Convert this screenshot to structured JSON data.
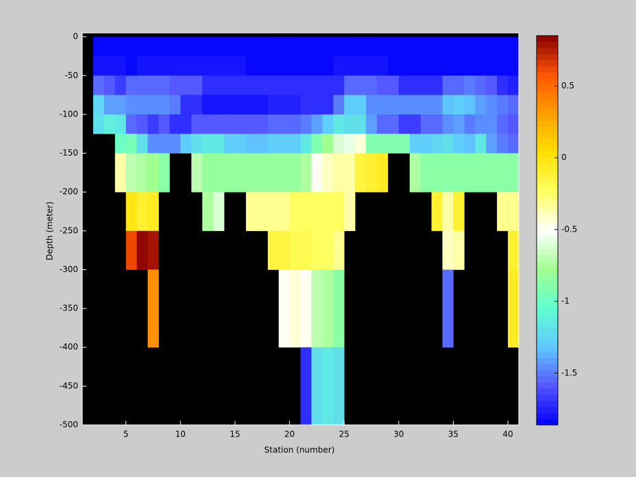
{
  "chart_data": {
    "type": "heatmap",
    "xlabel": "Station (number)",
    "ylabel": "Depth (meter)",
    "x_edges": [
      1,
      2,
      3,
      4,
      5,
      6,
      7,
      8,
      9,
      10,
      11,
      12,
      13,
      14,
      15,
      16,
      17,
      18,
      19,
      20,
      21,
      22,
      23,
      24,
      25,
      26,
      27,
      28,
      29,
      30,
      31,
      32,
      33,
      34,
      35,
      36,
      37,
      38,
      39,
      40,
      41
    ],
    "y_edges": [
      0,
      -25,
      -50,
      -75,
      -100,
      -125,
      -150,
      -200,
      -250,
      -300,
      -400,
      -500
    ],
    "values": [
      [
        null,
        -1.84,
        -1.84,
        -1.84,
        -1.84,
        -1.84,
        -1.84,
        -1.84,
        -1.84,
        -1.84,
        -1.84,
        -1.84,
        -1.84,
        -1.84,
        -1.84,
        -1.84,
        -1.84,
        -1.84,
        -1.84,
        -1.84,
        -1.84,
        -1.84,
        -1.84,
        -1.84,
        -1.84,
        -1.84,
        -1.84,
        -1.84,
        -1.84,
        -1.84,
        -1.84,
        -1.84,
        -1.84,
        -1.84,
        -1.84,
        -1.84,
        -1.84,
        -1.84,
        -1.84,
        -1.84
      ],
      [
        null,
        -1.8,
        -1.8,
        -1.8,
        -1.84,
        -1.78,
        -1.78,
        -1.78,
        -1.78,
        -1.78,
        -1.78,
        -1.78,
        -1.78,
        -1.78,
        -1.78,
        -1.85,
        -1.85,
        -1.85,
        -1.85,
        -1.85,
        -1.85,
        -1.85,
        -1.85,
        -1.8,
        -1.8,
        -1.8,
        -1.8,
        -1.8,
        -1.84,
        -1.84,
        -1.84,
        -1.84,
        -1.84,
        -1.84,
        -1.84,
        -1.84,
        -1.84,
        -1.84,
        -1.84,
        -1.84
      ],
      [
        null,
        -1.55,
        -1.6,
        -1.65,
        -1.55,
        -1.55,
        -1.55,
        -1.55,
        -1.6,
        -1.6,
        -1.6,
        -1.72,
        -1.72,
        -1.72,
        -1.72,
        -1.72,
        -1.72,
        -1.72,
        -1.72,
        -1.72,
        -1.72,
        -1.72,
        -1.72,
        -1.72,
        -1.55,
        -1.55,
        -1.55,
        -1.6,
        -1.6,
        -1.7,
        -1.7,
        -1.7,
        -1.7,
        -1.55,
        -1.55,
        -1.5,
        -1.55,
        -1.6,
        -1.7,
        -1.75
      ],
      [
        null,
        -1.25,
        -1.4,
        -1.4,
        -1.45,
        -1.45,
        -1.45,
        -1.45,
        -1.5,
        -1.7,
        -1.7,
        -1.78,
        -1.78,
        -1.78,
        -1.78,
        -1.78,
        -1.78,
        -1.75,
        -1.75,
        -1.75,
        -1.7,
        -1.7,
        -1.7,
        -1.5,
        -1.3,
        -1.3,
        -1.45,
        -1.45,
        -1.45,
        -1.45,
        -1.45,
        -1.45,
        -1.45,
        -1.35,
        -1.3,
        -1.35,
        -1.4,
        -1.45,
        -1.5,
        -1.55
      ],
      [
        null,
        -1.2,
        -1.1,
        -1.15,
        -1.55,
        -1.6,
        -1.65,
        -1.6,
        -1.7,
        -1.7,
        -1.6,
        -1.6,
        -1.6,
        -1.6,
        -1.6,
        -1.6,
        -1.6,
        -1.55,
        -1.55,
        -1.55,
        -1.5,
        -1.4,
        -1.3,
        -1.15,
        -1.2,
        -1.2,
        -1.4,
        -1.55,
        -1.55,
        -1.65,
        -1.65,
        -1.55,
        -1.55,
        -1.45,
        -1.4,
        -1.5,
        -1.45,
        -1.45,
        -1.55,
        -1.6
      ],
      [
        null,
        null,
        null,
        -1.0,
        -0.95,
        -1.2,
        -1.45,
        -1.45,
        -1.45,
        -1.3,
        -1.2,
        -1.15,
        -1.15,
        -1.3,
        -1.3,
        -1.35,
        -1.35,
        -1.3,
        -1.3,
        -1.3,
        -1.15,
        -0.9,
        -0.8,
        -0.6,
        -0.55,
        -0.45,
        -0.9,
        -0.9,
        -0.9,
        -0.9,
        -1.3,
        -1.3,
        -1.25,
        -1.2,
        -1.3,
        -1.35,
        -1.15,
        -1.4,
        -1.5,
        -1.55
      ],
      [
        null,
        null,
        null,
        -0.35,
        -0.7,
        -0.75,
        -0.8,
        -0.85,
        null,
        null,
        -0.7,
        -0.82,
        -0.82,
        -0.82,
        -0.82,
        -0.82,
        -0.82,
        -0.82,
        -0.82,
        -0.82,
        -0.75,
        -0.5,
        -0.4,
        -0.35,
        -0.35,
        -0.15,
        -0.1,
        -0.05,
        null,
        null,
        -0.75,
        -0.85,
        -0.85,
        -0.85,
        -0.85,
        -0.85,
        -0.85,
        -0.85,
        -0.85,
        -0.85
      ],
      [
        null,
        null,
        null,
        null,
        0.0,
        -0.1,
        -0.05,
        null,
        null,
        null,
        null,
        -0.75,
        -0.6,
        null,
        null,
        -0.3,
        -0.3,
        -0.3,
        -0.3,
        -0.25,
        -0.25,
        -0.25,
        -0.25,
        -0.25,
        -0.35,
        null,
        null,
        null,
        null,
        null,
        null,
        null,
        -0.1,
        -0.35,
        -0.1,
        null,
        null,
        null,
        -0.3,
        -0.3
      ],
      [
        null,
        null,
        null,
        null,
        0.6,
        0.82,
        0.78,
        null,
        null,
        null,
        null,
        null,
        null,
        null,
        null,
        null,
        null,
        -0.15,
        -0.15,
        -0.2,
        -0.2,
        -0.25,
        -0.25,
        -0.3,
        null,
        null,
        null,
        null,
        null,
        null,
        null,
        null,
        null,
        -0.4,
        -0.35,
        null,
        null,
        null,
        null,
        -0.1
      ],
      [
        null,
        null,
        null,
        null,
        null,
        null,
        0.35,
        null,
        null,
        null,
        null,
        null,
        null,
        null,
        null,
        null,
        null,
        null,
        -0.5,
        -0.45,
        -0.5,
        -0.7,
        -0.75,
        -0.85,
        null,
        null,
        null,
        null,
        null,
        null,
        null,
        null,
        null,
        -1.55,
        null,
        null,
        null,
        null,
        null,
        -0.05
      ],
      [
        null,
        null,
        null,
        null,
        null,
        null,
        null,
        null,
        null,
        null,
        null,
        null,
        null,
        null,
        null,
        null,
        null,
        null,
        null,
        null,
        -1.7,
        -1.2,
        -1.15,
        -1.2,
        null,
        null,
        null,
        null,
        null,
        null,
        null,
        null,
        null,
        null,
        null,
        null,
        null,
        null,
        null,
        null
      ]
    ],
    "xlim": [
      1,
      41
    ],
    "ylim": [
      -500,
      5
    ],
    "xticks": [
      5,
      10,
      15,
      20,
      25,
      30,
      35,
      40
    ],
    "yticks": [
      0,
      -50,
      -100,
      -150,
      -200,
      -250,
      -300,
      -350,
      -400,
      -450,
      -500
    ],
    "clim": [
      -1.86,
      0.85
    ],
    "cticks": [
      0.5,
      0,
      -0.5,
      -1,
      -1.5
    ],
    "colormap": [
      "#0000ff",
      "#5555ff",
      "#60c8ff",
      "#60ffd0",
      "#a0ff90",
      "#ffffff",
      "#ffff60",
      "#ffe000",
      "#ffa000",
      "#ff5500",
      "#880000"
    ],
    "background": "#000000"
  }
}
